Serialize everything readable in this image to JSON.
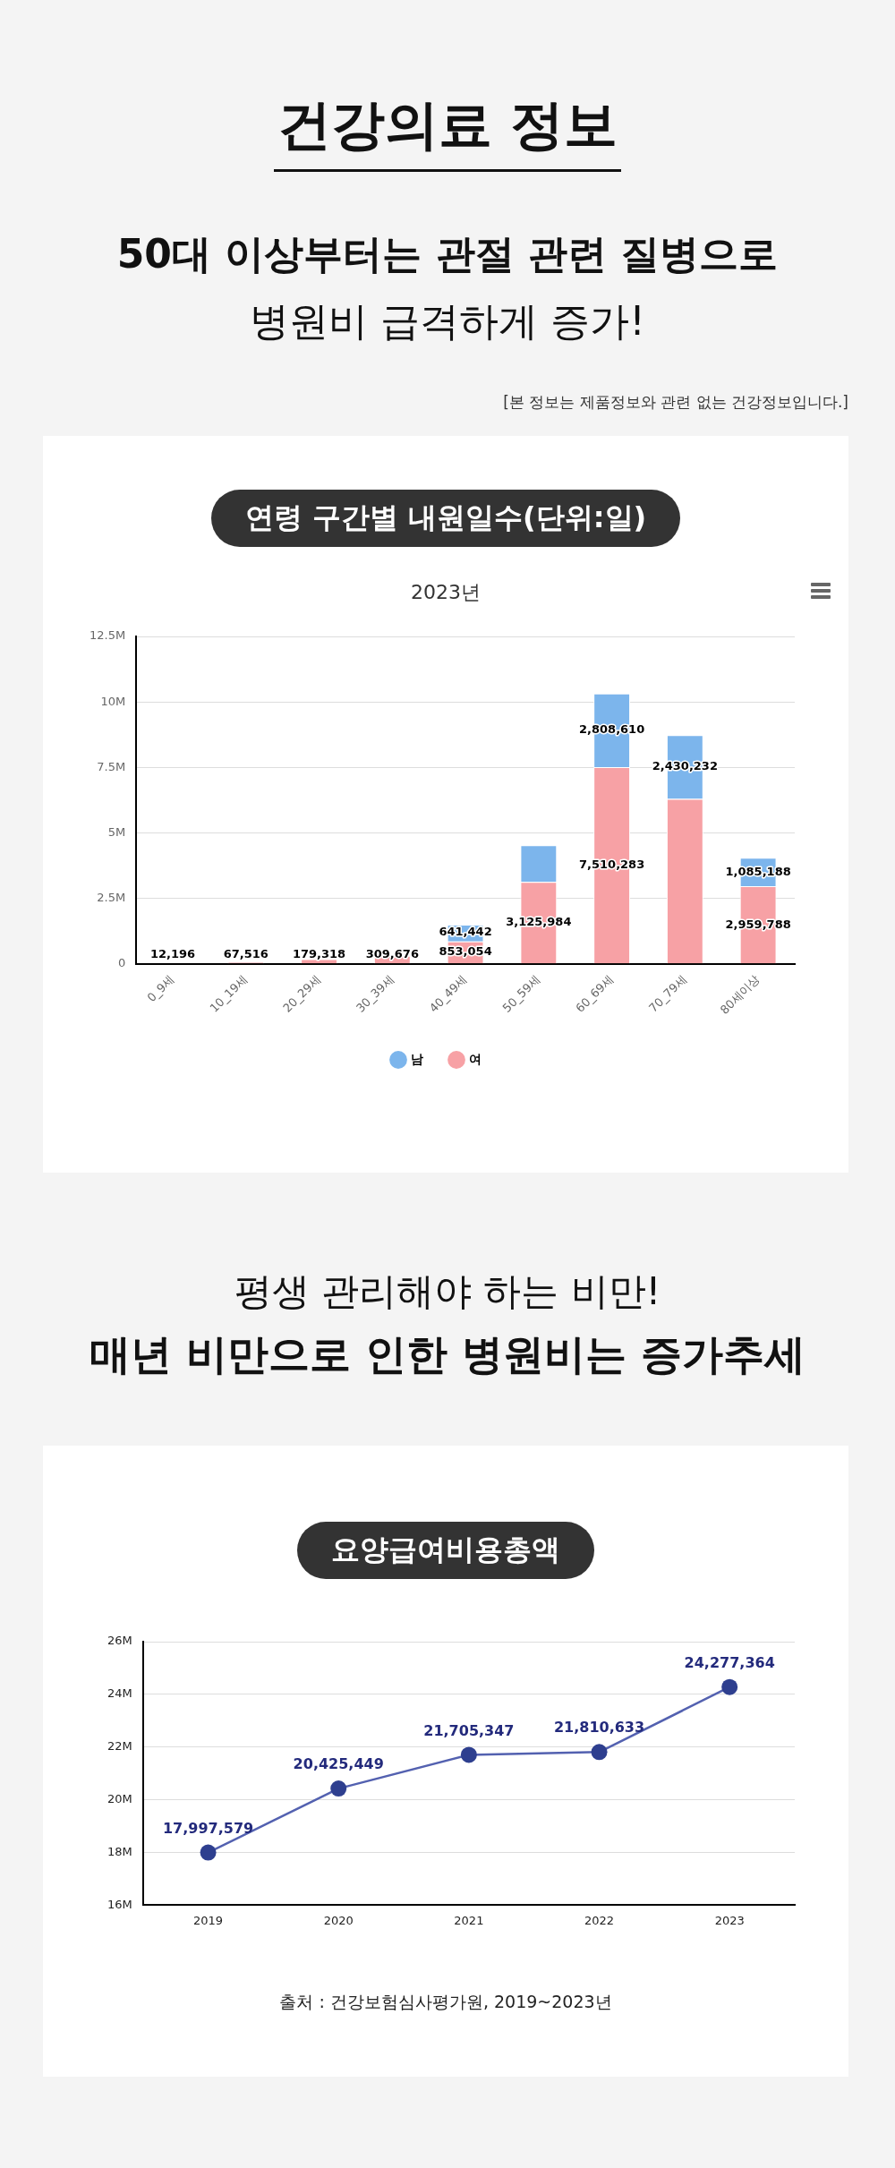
{
  "chart_data": [
    {
      "type": "bar",
      "title": "연령 구간별 내원일수(단위:일)",
      "subtitle": "2023년",
      "stacked": true,
      "legend": "bottom",
      "grid": "y",
      "annotations": [
        "건강의료 정보",
        "50대 이상부터는 관절 관련 질병으로",
        "병원비 급격하게 증가!",
        "[본 정보는 제품정보와 관련 없는 건강정보입니다.]"
      ],
      "categories": [
        "0_9세",
        "10_19세",
        "20_29세",
        "30_39세",
        "40_49세",
        "50_59세",
        "60_69세",
        "70_79세",
        "80세이상"
      ],
      "ylim": [
        0,
        12500000
      ],
      "yticks": [
        0,
        {
          "value": 2500000,
          "label": "2.5M"
        },
        {
          "value": 5000000,
          "label": "5M"
        },
        {
          "value": 7500000,
          "label": "7.5M"
        },
        {
          "value": 10000000,
          "label": "10M"
        },
        {
          "value": 12500000,
          "label": "12.5M"
        }
      ],
      "series": [
        {
          "name": "여",
          "color": "#f7a1a5",
          "values": [
            12196,
            67516,
            179318,
            309676,
            853054,
            3125984,
            7510283,
            6300000,
            2959788
          ],
          "value_labels": [
            "12,196",
            "67,516",
            "179,318",
            "309,676",
            "853,054",
            "3,125,984",
            "7,510,283",
            null,
            "2,959,788"
          ]
        },
        {
          "name": "남",
          "color": "#7cb5ec",
          "values": [
            null,
            null,
            null,
            null,
            641442,
            1400000,
            2808610,
            2430232,
            1085188
          ],
          "value_labels": [
            null,
            null,
            null,
            null,
            "641,442",
            null,
            "2,808,610",
            "2,430,232",
            "1,085,188"
          ]
        }
      ]
    },
    {
      "type": "line",
      "title": "요양급여비용총액",
      "grid": "y",
      "marker": "circle",
      "annotations": [
        "평생 관리해야 하는 비만!",
        "매년 비만으로 인한 병원비는 증가추세",
        "출처 : 건강보험심사평가원, 2019~2023년"
      ],
      "categories": [
        "2019",
        "2020",
        "2021",
        "2022",
        "2023"
      ],
      "ylim": [
        16000000,
        26000000
      ],
      "yticks": [
        {
          "value": 16000000,
          "label": "16M"
        },
        {
          "value": 18000000,
          "label": "18M"
        },
        {
          "value": 20000000,
          "label": "20M"
        },
        {
          "value": 22000000,
          "label": "22M"
        },
        {
          "value": 24000000,
          "label": "24M"
        },
        {
          "value": 26000000,
          "label": "26M"
        }
      ],
      "series": [
        {
          "color": "#5361b0",
          "values": [
            17997579,
            20425449,
            21705347,
            21810633,
            24277364
          ],
          "value_labels": [
            "17,997,579",
            "20,425,449",
            "21,705,347",
            "21,810,633",
            "24,277,364"
          ]
        }
      ]
    }
  ]
}
